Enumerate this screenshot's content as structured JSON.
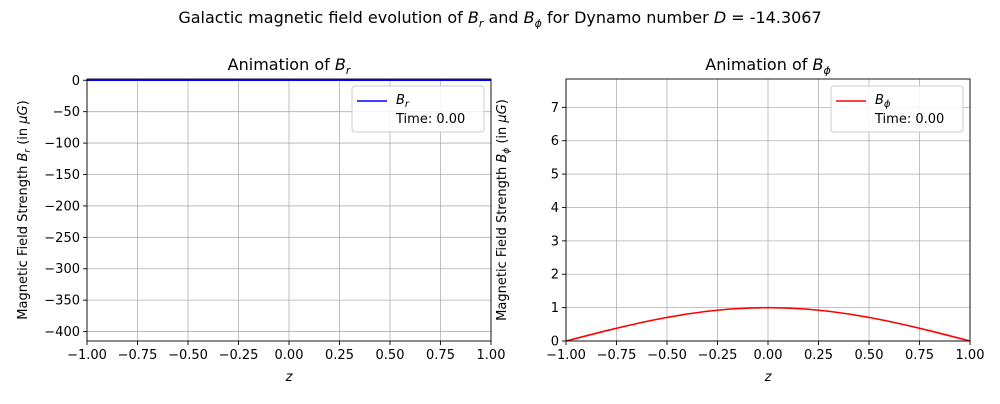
{
  "figure": {
    "suptitle_prefix": "Galactic magnetic field evolution of ",
    "suptitle_br": "B",
    "suptitle_br_sub": "r",
    "suptitle_and": " and ",
    "suptitle_bphi": "B",
    "suptitle_bphi_sub": "ϕ",
    "suptitle_mid": " for Dynamo number ",
    "suptitle_d": "D",
    "suptitle_value": " = -14.3067"
  },
  "chart_data": [
    {
      "type": "line",
      "title_prefix": "Animation of ",
      "title_sym": "B",
      "title_sub": "r",
      "xlabel": "z",
      "ylabel_prefix": "Magnetic Field Strength ",
      "ylabel_sym": "B",
      "ylabel_sub": "r",
      "ylabel_suffix_a": " (in ",
      "ylabel_mu": "μG",
      "ylabel_suffix_b": ")",
      "xlim": [
        -1.0,
        1.0
      ],
      "ylim": [
        -415,
        2
      ],
      "xticks": [
        -1.0,
        -0.75,
        -0.5,
        -0.25,
        0.0,
        0.25,
        0.5,
        0.75,
        1.0
      ],
      "xtick_labels": [
        "−1.00",
        "−0.75",
        "−0.50",
        "−0.25",
        "0.00",
        "0.25",
        "0.50",
        "0.75",
        "1.00"
      ],
      "yticks": [
        0,
        -50,
        -100,
        -150,
        -200,
        -250,
        -300,
        -350,
        -400
      ],
      "ytick_labels": [
        "0",
        "−50",
        "−100",
        "−150",
        "−200",
        "−250",
        "−300",
        "−350",
        "−400"
      ],
      "grid": true,
      "legend_position": "upper right",
      "series": [
        {
          "name_sym": "B",
          "name_sub": "r",
          "color": "#0000ff",
          "x": [
            -1.0,
            -0.75,
            -0.5,
            -0.25,
            0.0,
            0.25,
            0.5,
            0.75,
            1.0
          ],
          "y": [
            0,
            0,
            0,
            0,
            0,
            0,
            0,
            0,
            0
          ]
        }
      ],
      "legend_time": "Time: 0.00"
    },
    {
      "type": "line",
      "title_prefix": "Animation of ",
      "title_sym": "B",
      "title_sub": "ϕ",
      "xlabel": "z",
      "ylabel_prefix": "Magnetic Field Strength ",
      "ylabel_sym": "B",
      "ylabel_sub": "ϕ",
      "ylabel_suffix_a": " (in ",
      "ylabel_mu": "μG",
      "ylabel_suffix_b": ")",
      "xlim": [
        -1.0,
        1.0
      ],
      "ylim": [
        0,
        7.85
      ],
      "xticks": [
        -1.0,
        -0.75,
        -0.5,
        -0.25,
        0.0,
        0.25,
        0.5,
        0.75,
        1.0
      ],
      "xtick_labels": [
        "−1.00",
        "−0.75",
        "−0.50",
        "−0.25",
        "0.00",
        "0.25",
        "0.50",
        "0.75",
        "1.00"
      ],
      "yticks": [
        0,
        1,
        2,
        3,
        4,
        5,
        6,
        7
      ],
      "ytick_labels": [
        "0",
        "1",
        "2",
        "3",
        "4",
        "5",
        "6",
        "7"
      ],
      "grid": true,
      "legend_position": "upper right",
      "series": [
        {
          "name_sym": "B",
          "name_sub": "ϕ",
          "color": "#ff0000",
          "x": [
            -1.0,
            -0.9,
            -0.8,
            -0.7,
            -0.6,
            -0.5,
            -0.4,
            -0.3,
            -0.2,
            -0.1,
            0.0,
            0.1,
            0.2,
            0.3,
            0.4,
            0.5,
            0.6,
            0.7,
            0.8,
            0.9,
            1.0
          ],
          "y": [
            0.0,
            0.156,
            0.309,
            0.454,
            0.588,
            0.707,
            0.809,
            0.891,
            0.951,
            0.988,
            1.0,
            0.988,
            0.951,
            0.891,
            0.809,
            0.707,
            0.588,
            0.454,
            0.309,
            0.156,
            0.0
          ]
        }
      ],
      "legend_time": "Time: 0.00"
    }
  ]
}
